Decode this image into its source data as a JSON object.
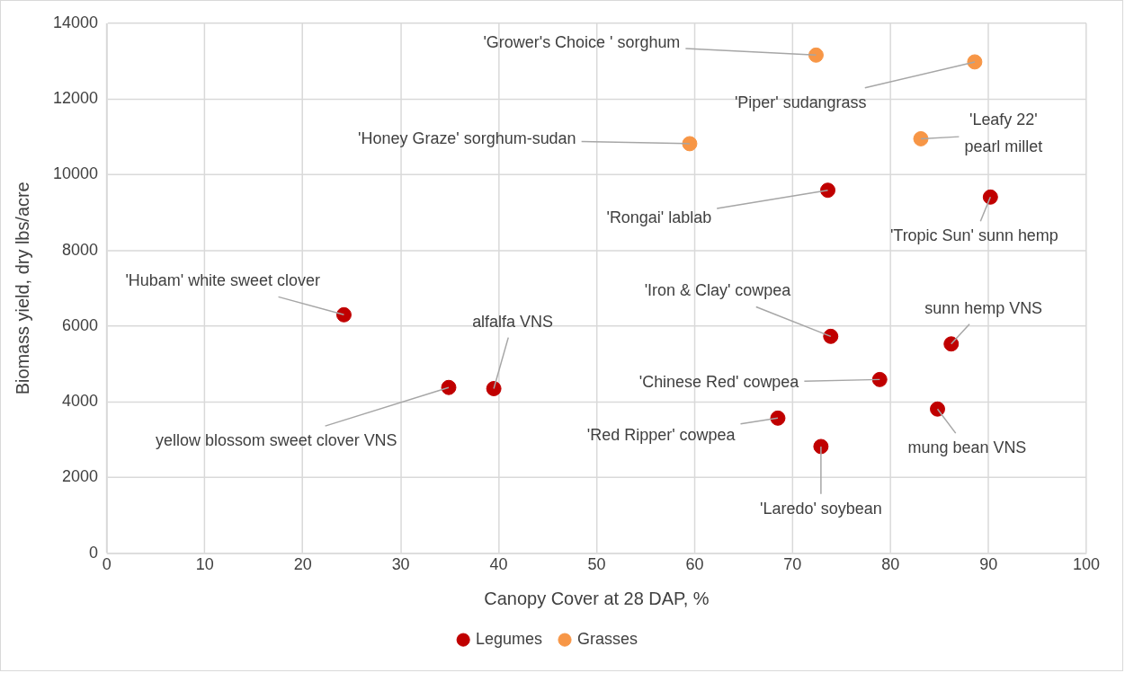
{
  "chart_data": {
    "type": "scatter",
    "xlabel": "Canopy Cover at 28 DAP, %",
    "ylabel": "Biomass yield, dry lbs/acre",
    "xlim": [
      0,
      100
    ],
    "xticks": [
      0,
      10,
      20,
      30,
      40,
      50,
      60,
      70,
      80,
      90,
      100
    ],
    "ylim": [
      0,
      14000
    ],
    "yticks": [
      0,
      2000,
      4000,
      6000,
      8000,
      10000,
      12000,
      14000
    ],
    "grid": true,
    "legend": "bottom",
    "marker": "circle",
    "series": [
      {
        "name": "Legumes",
        "color": "#c00000",
        "x": [
          24.2,
          34.9,
          39.5,
          73.6,
          90.2,
          73.9,
          86.2,
          78.9,
          68.5,
          84.8,
          72.9
        ],
        "values": [
          6300,
          4380,
          4350,
          9590,
          9410,
          5730,
          5530,
          4590,
          3570,
          3810,
          2820
        ]
      },
      {
        "name": "Grasses",
        "color": "#f79646",
        "x": [
          72.4,
          88.6,
          59.5,
          83.1
        ],
        "values": [
          13160,
          12980,
          10820,
          10950
        ]
      }
    ],
    "annotations": [
      {
        "text": "'Grower's Choice ' sorghum",
        "x": 72.4,
        "y": 13160
      },
      {
        "text": "'Piper' sudangrass",
        "x": 88.6,
        "y": 12980
      },
      {
        "text": "'Honey Graze' sorghum-sudan",
        "x": 59.5,
        "y": 10820
      },
      {
        "text": "'Leafy 22' pearl millet",
        "x": 83.1,
        "y": 10950
      },
      {
        "text": "'Rongai' lablab",
        "x": 73.6,
        "y": 9590
      },
      {
        "text": "'Tropic Sun' sunn hemp",
        "x": 90.2,
        "y": 9410
      },
      {
        "text": "'Hubam' white sweet clover",
        "x": 24.2,
        "y": 6300
      },
      {
        "text": "'Iron & Clay' cowpea",
        "x": 73.9,
        "y": 5730
      },
      {
        "text": "sunn hemp VNS",
        "x": 86.2,
        "y": 5530
      },
      {
        "text": "alfalfa VNS",
        "x": 39.5,
        "y": 4350
      },
      {
        "text": "'Chinese Red' cowpea",
        "x": 78.9,
        "y": 4590
      },
      {
        "text": "yellow blossom sweet clover VNS",
        "x": 34.9,
        "y": 4380
      },
      {
        "text": "'Red Ripper' cowpea",
        "x": 68.5,
        "y": 3570
      },
      {
        "text": "mung bean VNS",
        "x": 84.8,
        "y": 3810
      },
      {
        "text": "'Laredo' soybean",
        "x": 72.9,
        "y": 2820
      }
    ]
  }
}
